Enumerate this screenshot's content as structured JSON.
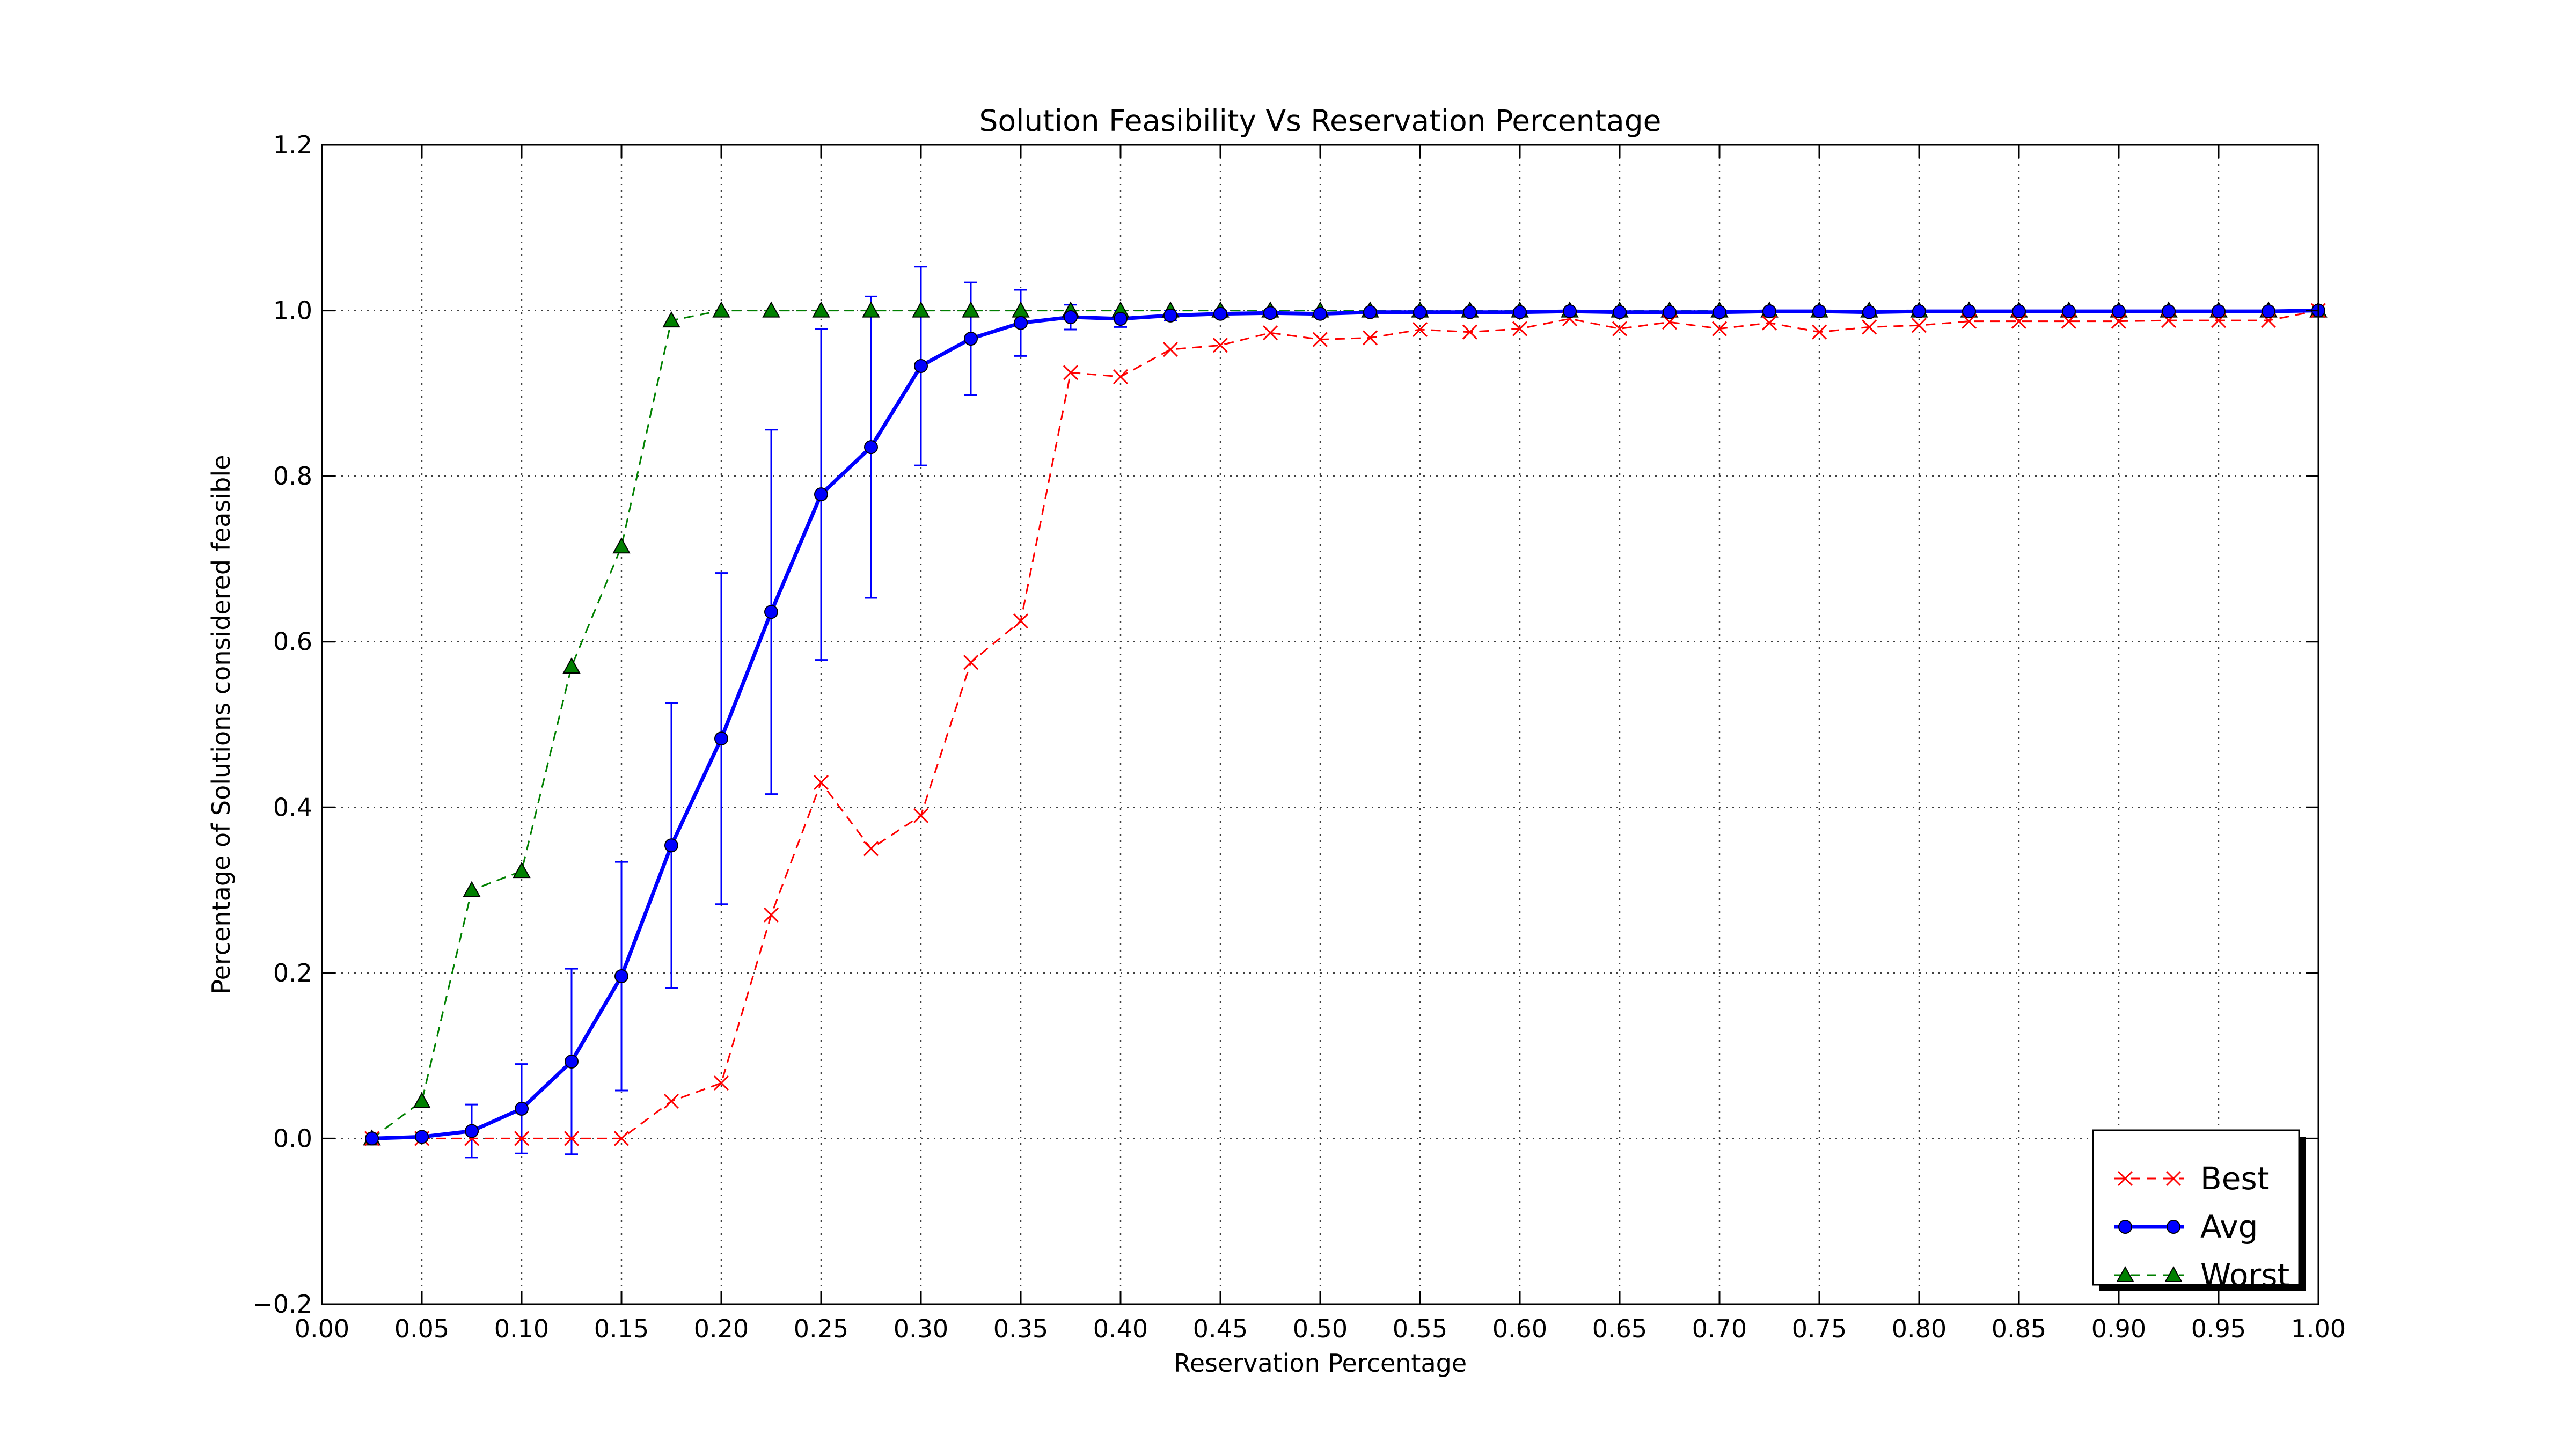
{
  "chart_data": {
    "type": "line",
    "title": "Solution Feasibility Vs Reservation Percentage",
    "xlabel": "Reservation Percentage",
    "ylabel": "Percentage of Solutions considered feasible",
    "xlim": [
      0.0,
      1.0
    ],
    "ylim": [
      -0.2,
      1.2
    ],
    "grid": true,
    "legend_position": "lower-right",
    "x_tick_labels": [
      "0.00",
      "0.05",
      "0.10",
      "0.15",
      "0.20",
      "0.25",
      "0.30",
      "0.35",
      "0.40",
      "0.45",
      "0.50",
      "0.55",
      "0.60",
      "0.65",
      "0.70",
      "0.75",
      "0.80",
      "0.85",
      "0.90",
      "0.95",
      "1.00"
    ],
    "y_tick_labels": [
      "−0.2",
      "0.0",
      "0.2",
      "0.4",
      "0.6",
      "0.8",
      "1.0",
      "1.2"
    ],
    "x": [
      0.025,
      0.05,
      0.075,
      0.1,
      0.125,
      0.15,
      0.175,
      0.2,
      0.225,
      0.25,
      0.275,
      0.3,
      0.325,
      0.35,
      0.375,
      0.4,
      0.425,
      0.45,
      0.475,
      0.5,
      0.525,
      0.55,
      0.575,
      0.6,
      0.625,
      0.65,
      0.675,
      0.7,
      0.725,
      0.75,
      0.775,
      0.8,
      0.825,
      0.85,
      0.875,
      0.9,
      0.925,
      0.95,
      0.975,
      1.0
    ],
    "series": [
      {
        "name": "Best",
        "color": "#ff0000",
        "style": "dashed",
        "marker": "x",
        "values": [
          0.0,
          0.0,
          0.0,
          0.0,
          0.0,
          0.0,
          0.045,
          0.067,
          0.27,
          0.43,
          0.35,
          0.39,
          0.575,
          0.625,
          0.925,
          0.92,
          0.953,
          0.958,
          0.973,
          0.965,
          0.967,
          0.977,
          0.974,
          0.978,
          0.99,
          0.978,
          0.986,
          0.978,
          0.985,
          0.974,
          0.98,
          0.982,
          0.987,
          0.987,
          0.987,
          0.987,
          0.988,
          0.988,
          0.988,
          1.0
        ]
      },
      {
        "name": "Avg",
        "color": "#0000ff",
        "style": "solid",
        "marker": "o",
        "values": [
          0.0,
          0.002,
          0.009,
          0.036,
          0.093,
          0.196,
          0.354,
          0.483,
          0.636,
          0.778,
          0.835,
          0.933,
          0.966,
          0.985,
          0.992,
          0.99,
          0.994,
          0.996,
          0.997,
          0.996,
          0.998,
          0.998,
          0.998,
          0.998,
          0.999,
          0.998,
          0.998,
          0.998,
          0.999,
          0.999,
          0.998,
          0.999,
          0.999,
          0.999,
          0.999,
          0.999,
          0.999,
          0.999,
          0.999,
          1.0
        ],
        "error": [
          0.0,
          0.002,
          0.032,
          0.054,
          0.112,
          0.138,
          0.172,
          0.2,
          0.22,
          0.2,
          0.182,
          0.12,
          0.068,
          0.04,
          0.015,
          0.01,
          0.006,
          0.004,
          0.003,
          0.002,
          0.001,
          0.001,
          0.001,
          0.001,
          0.001,
          0.001,
          0.001,
          0.001,
          0.001,
          0.001,
          0.001,
          0.001,
          0.001,
          0.001,
          0.001,
          0.001,
          0.001,
          0.001,
          0.001,
          0.0
        ]
      },
      {
        "name": "Worst",
        "color": "#008000",
        "style": "dashed",
        "marker": "^",
        "values": [
          0.0,
          0.045,
          0.3,
          0.323,
          0.57,
          0.715,
          0.988,
          1.0,
          1.0,
          1.0,
          1.0,
          1.0,
          1.0,
          1.0,
          1.0,
          1.0,
          1.0,
          1.0,
          1.0,
          1.0,
          1.0,
          1.0,
          1.0,
          1.0,
          1.0,
          1.0,
          1.0,
          1.0,
          1.0,
          1.0,
          1.0,
          1.0,
          1.0,
          1.0,
          1.0,
          1.0,
          1.0,
          1.0,
          1.0,
          1.0
        ]
      }
    ]
  }
}
